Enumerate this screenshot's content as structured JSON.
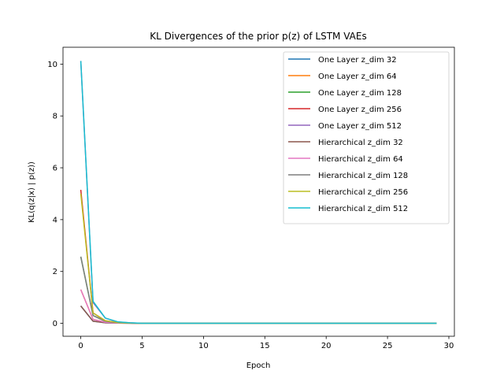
{
  "chart_data": {
    "type": "line",
    "title": "KL Divergences of the prior p(z) of LSTM VAEs",
    "xlabel": "Epoch",
    "ylabel": "KL(q(z|x) | p(z))",
    "xlim": [
      -1.45,
      30.45
    ],
    "ylim": [
      -0.5,
      10.65
    ],
    "xticks": [
      0,
      5,
      10,
      15,
      20,
      25,
      30
    ],
    "yticks": [
      0,
      2,
      4,
      6,
      8,
      10
    ],
    "grid": false,
    "legend_position": "top-right",
    "x_range": [
      0,
      29
    ],
    "series": [
      {
        "name": "One Layer z_dim 32",
        "color": "#1f77b4",
        "head": [
          0.67,
          0.08,
          0.02,
          0.01,
          0.005
        ]
      },
      {
        "name": "One Layer z_dim 64",
        "color": "#ff7f0e",
        "head": [
          1.3,
          0.15,
          0.04,
          0.01,
          0.005
        ]
      },
      {
        "name": "One Layer z_dim 128",
        "color": "#2ca02c",
        "head": [
          2.57,
          0.3,
          0.08,
          0.02,
          0.01
        ]
      },
      {
        "name": "One Layer z_dim 256",
        "color": "#d62728",
        "head": [
          5.15,
          0.4,
          0.1,
          0.03,
          0.01
        ]
      },
      {
        "name": "One Layer z_dim 512",
        "color": "#9467bd",
        "head": [
          10.12,
          0.8,
          0.2,
          0.05,
          0.02
        ]
      },
      {
        "name": "Hierarchical z_dim 32",
        "color": "#8c564b",
        "head": [
          0.67,
          0.08,
          0.02,
          0.01,
          0.005
        ]
      },
      {
        "name": "Hierarchical z_dim 64",
        "color": "#e377c2",
        "head": [
          1.3,
          0.15,
          0.04,
          0.01,
          0.005
        ]
      },
      {
        "name": "Hierarchical z_dim 128",
        "color": "#7f7f7f",
        "head": [
          2.57,
          0.3,
          0.08,
          0.02,
          0.01
        ]
      },
      {
        "name": "Hierarchical z_dim 256",
        "color": "#bcbd22",
        "head": [
          5.0,
          0.4,
          0.1,
          0.03,
          0.01
        ]
      },
      {
        "name": "Hierarchical z_dim 512",
        "color": "#17becf",
        "head": [
          10.12,
          0.85,
          0.2,
          0.06,
          0.02
        ]
      }
    ],
    "tail_value": 0.0
  }
}
